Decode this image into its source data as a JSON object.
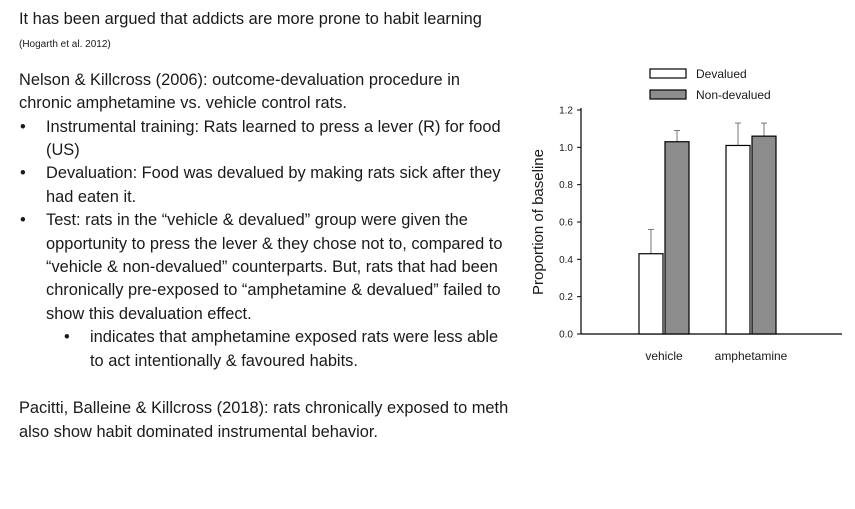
{
  "slide": {
    "intro": "It has been argued that addicts are more prone to habit learning",
    "intro_cite": "(Hogarth et al. 2012)",
    "study1": "Nelson & Killcross (2006): outcome-devaluation procedure in chronic amphetamine vs. vehicle control rats.",
    "bullets": [
      "Instrumental training: Rats learned to press a lever (R) for food (US)",
      "Devaluation: Food was devalued by making rats sick after they had eaten it.",
      "Test: rats in the “vehicle & devalued” group were given the opportunity to press the lever & they chose not to, compared to “vehicle & non-devalued” counterparts.  But, rats that had been chronically pre-exposed to “amphetamine & devalued” failed to show this devaluation effect."
    ],
    "sub_bullet": "indicates that amphetamine exposed rats were less able to act intentionally & favoured habits.",
    "study2": "Pacitti, Balleine & Killcross (2018): rats chronically exposed to meth also show habit dominated instrumental behavior."
  },
  "chart_data": {
    "type": "bar",
    "categories": [
      "vehicle",
      "amphetamine"
    ],
    "series": [
      {
        "name": "Devalued",
        "values": [
          0.43,
          1.01
        ],
        "errors": [
          0.13,
          0.12
        ],
        "color": "#ffffff"
      },
      {
        "name": "Non-devalued",
        "values": [
          1.03,
          1.06
        ],
        "errors": [
          0.06,
          0.07
        ],
        "color": "#8c8c8c"
      }
    ],
    "ylabel": "Proportion of baseline",
    "xlabel": "",
    "ylim": [
      0,
      1.2
    ],
    "yticks": [
      "0.0",
      "0.2",
      "0.4",
      "0.6",
      "0.8",
      "1.0",
      "1.2"
    ],
    "legend_position": "top",
    "grid": false
  }
}
